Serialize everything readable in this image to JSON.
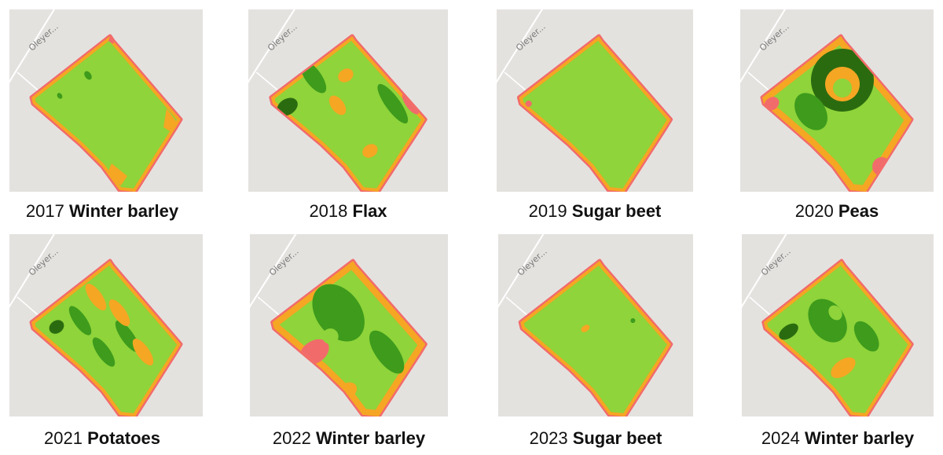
{
  "panels": [
    {
      "year": "2017",
      "crop": "Winter barley",
      "road": "Oleyer..."
    },
    {
      "year": "2018",
      "crop": "Flax",
      "road": "Oleyer..."
    },
    {
      "year": "2019",
      "crop": "Sugar beet",
      "road": "Oleyer..."
    },
    {
      "year": "2020",
      "crop": "Peas",
      "road": "Oleyer..."
    },
    {
      "year": "2021",
      "crop": "Potatoes",
      "road": "Oleyer..."
    },
    {
      "year": "2022",
      "crop": "Winter barley",
      "road": "Oleyer..."
    },
    {
      "year": "2023",
      "crop": "Sugar beet",
      "road": "Oleyer..."
    },
    {
      "year": "2024",
      "crop": "Winter barley",
      "road": "Oleyer..."
    }
  ],
  "colors": {
    "background": "#e4e2df",
    "low": "#f26b6b",
    "medium_low": "#f5a623",
    "medium": "#8ed43a",
    "high": "#3e9b1c",
    "very_high": "#2b6b10",
    "road": "#ffffff"
  }
}
